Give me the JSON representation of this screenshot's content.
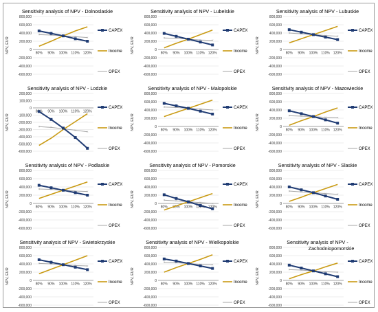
{
  "colors": {
    "capex": "#1f3b73",
    "income": "#c99a12",
    "opex": "#a6a6a6",
    "grid": "#d9d9d9",
    "frame": "#9a9a9a"
  },
  "chart_data": [
    {
      "type": "line",
      "title": "Sensitivity analysis of NPV - Dolnoslaskie",
      "ylabel": "NPV, EUR",
      "categories": [
        "80%",
        "90%",
        "100%",
        "110%",
        "120%"
      ],
      "ylim": [
        -600000,
        800000
      ],
      "yticks": [
        "800,000",
        "600,000",
        "400,000",
        "200,000",
        "0",
        "-200,000",
        "-400,000",
        "-600,000"
      ],
      "grid": true,
      "legend": "right",
      "series": [
        {
          "name": "CAPEX",
          "values": [
            450000,
            390000,
            330000,
            260000,
            200000
          ]
        },
        {
          "name": "Income",
          "values": [
            80000,
            200000,
            330000,
            450000,
            550000
          ]
        },
        {
          "name": "OPEX",
          "values": [
            360000,
            350000,
            330000,
            310000,
            290000
          ]
        }
      ]
    },
    {
      "type": "line",
      "title": "Sensitivity analysis of NPV - Lubelskie",
      "ylabel": "NPV, EUR",
      "categories": [
        "80%",
        "90%",
        "100%",
        "110%",
        "120%"
      ],
      "ylim": [
        -600000,
        800000
      ],
      "yticks": [
        "800,000",
        "600,000",
        "400,000",
        "200,000",
        "0",
        "-200,000",
        "-400,000",
        "-600,000"
      ],
      "grid": true,
      "legend": "right",
      "series": [
        {
          "name": "CAPEX",
          "values": [
            390000,
            320000,
            250000,
            180000,
            110000
          ]
        },
        {
          "name": "Income",
          "values": [
            40000,
            150000,
            250000,
            360000,
            470000
          ]
        },
        {
          "name": "OPEX",
          "values": [
            280000,
            270000,
            250000,
            230000,
            220000
          ]
        }
      ]
    },
    {
      "type": "line",
      "title": "Sensitivity analysis of NPV - Lubuskie",
      "ylabel": "NPV, EUR",
      "categories": [
        "80%",
        "90%",
        "100%",
        "110%",
        "120%"
      ],
      "ylim": [
        -600000,
        800000
      ],
      "yticks": [
        "800,000",
        "600,000",
        "400,000",
        "200,000",
        "0",
        "-200,000",
        "-400,000",
        "-600,000"
      ],
      "grid": true,
      "legend": "right",
      "series": [
        {
          "name": "CAPEX",
          "values": [
            480000,
            420000,
            360000,
            300000,
            240000
          ]
        },
        {
          "name": "Income",
          "values": [
            160000,
            260000,
            360000,
            460000,
            560000
          ]
        },
        {
          "name": "OPEX",
          "values": [
            400000,
            380000,
            360000,
            340000,
            320000
          ]
        }
      ]
    },
    {
      "type": "line",
      "title": "Sensitivity analysis of NPV - Lodzkie",
      "ylabel": "NPV, EUR",
      "categories": [
        "80%",
        "90%",
        "100%",
        "110%",
        "120%"
      ],
      "ylim": [
        -600000,
        200000
      ],
      "yticks": [
        "200,000",
        "100,000",
        "0",
        "-100,000",
        "-200,000",
        "-300,000",
        "-400,000",
        "-500,000",
        "-600,000"
      ],
      "grid": true,
      "legend": "right",
      "series": [
        {
          "name": "CAPEX",
          "values": [
            -50000,
            -160000,
            -280000,
            -410000,
            -560000
          ]
        },
        {
          "name": "Income",
          "values": [
            -520000,
            -420000,
            -300000,
            -190000,
            -80000
          ]
        },
        {
          "name": "OPEX",
          "values": [
            -260000,
            -270000,
            -290000,
            -310000,
            -330000
          ]
        }
      ]
    },
    {
      "type": "line",
      "title": "Sensitivity analysis of NPV - Malopolskie",
      "ylabel": "NPV, EUR",
      "categories": [
        "80%",
        "90%",
        "100%",
        "110%",
        "120%"
      ],
      "ylim": [
        -600000,
        800000
      ],
      "yticks": [
        "800,000",
        "600,000",
        "400,000",
        "200,000",
        "0",
        "-200,000",
        "-400,000",
        "-600,000"
      ],
      "grid": true,
      "legend": "right",
      "series": [
        {
          "name": "CAPEX",
          "values": [
            560000,
            500000,
            440000,
            370000,
            300000
          ]
        },
        {
          "name": "Income",
          "values": [
            240000,
            340000,
            440000,
            540000,
            640000
          ]
        },
        {
          "name": "OPEX",
          "values": [
            470000,
            460000,
            440000,
            420000,
            400000
          ]
        }
      ]
    },
    {
      "type": "line",
      "title": "Sensitivity analysis of NPV - Mazowieckie",
      "ylabel": "NPV, EUR",
      "categories": [
        "80%",
        "90%",
        "100%",
        "110%",
        "120%"
      ],
      "ylim": [
        -600000,
        800000
      ],
      "yticks": [
        "800,000",
        "600,000",
        "400,000",
        "200,000",
        "0",
        "-200,000",
        "-400,000",
        "-600,000"
      ],
      "grid": true,
      "legend": "right",
      "series": [
        {
          "name": "CAPEX",
          "values": [
            380000,
            310000,
            240000,
            160000,
            80000
          ]
        },
        {
          "name": "Income",
          "values": [
            30000,
            140000,
            240000,
            350000,
            450000
          ]
        },
        {
          "name": "OPEX",
          "values": [
            260000,
            250000,
            240000,
            220000,
            210000
          ]
        }
      ]
    },
    {
      "type": "line",
      "title": "Sensitivity analysis of NPV - Podlaskie",
      "ylabel": "NPV, EUR",
      "categories": [
        "80%",
        "90%",
        "100%",
        "110%",
        "120%"
      ],
      "ylim": [
        -600000,
        800000
      ],
      "yticks": [
        "800,000",
        "600,000",
        "400,000",
        "200,000",
        "0",
        "-200,000",
        "-400,000",
        "-600,000"
      ],
      "grid": true,
      "legend": "right",
      "series": [
        {
          "name": "CAPEX",
          "values": [
            440000,
            380000,
            320000,
            260000,
            200000
          ]
        },
        {
          "name": "Income",
          "values": [
            120000,
            220000,
            320000,
            420000,
            520000
          ]
        },
        {
          "name": "OPEX",
          "values": [
            350000,
            340000,
            320000,
            300000,
            290000
          ]
        }
      ]
    },
    {
      "type": "line",
      "title": "Sensitivity analysis of NPV - Pomorskie",
      "ylabel": "NPV, EUR",
      "categories": [
        "80%",
        "90%",
        "100%",
        "110%",
        "120%"
      ],
      "ylim": [
        -600000,
        800000
      ],
      "yticks": [
        "800,000",
        "600,000",
        "400,000",
        "200,000",
        "0",
        "-200,000",
        "-400,000",
        "-600,000"
      ],
      "grid": true,
      "legend": "right",
      "series": [
        {
          "name": "CAPEX",
          "values": [
            210000,
            120000,
            40000,
            -50000,
            -130000
          ]
        },
        {
          "name": "Income",
          "values": [
            -160000,
            -60000,
            40000,
            140000,
            240000
          ]
        },
        {
          "name": "OPEX",
          "values": [
            80000,
            60000,
            40000,
            20000,
            0
          ]
        }
      ]
    },
    {
      "type": "line",
      "title": "Sensitivity analysis of NPV - Slaskie",
      "ylabel": "NPV, EUR",
      "categories": [
        "80%",
        "90%",
        "100%",
        "110%",
        "120%"
      ],
      "ylim": [
        -600000,
        800000
      ],
      "yticks": [
        "800,000",
        "600,000",
        "400,000",
        "200,000",
        "0",
        "-200,000",
        "-400,000",
        "-600,000"
      ],
      "grid": true,
      "legend": "right",
      "series": [
        {
          "name": "CAPEX",
          "values": [
            400000,
            330000,
            260000,
            180000,
            100000
          ]
        },
        {
          "name": "Income",
          "values": [
            50000,
            150000,
            260000,
            360000,
            460000
          ]
        },
        {
          "name": "OPEX",
          "values": [
            300000,
            280000,
            260000,
            240000,
            220000
          ]
        }
      ]
    },
    {
      "type": "line",
      "title": "Sensitivity analysis of NPV - Swietokrzyskie",
      "ylabel": "NPV, EUR",
      "categories": [
        "80%",
        "90%",
        "100%",
        "110%",
        "120%"
      ],
      "ylim": [
        -600000,
        800000
      ],
      "yticks": [
        "800,000",
        "600,000",
        "400,000",
        "200,000",
        "0",
        "-200,000",
        "-400,000",
        "-600,000"
      ],
      "grid": true,
      "legend": "right",
      "series": [
        {
          "name": "CAPEX",
          "values": [
            500000,
            440000,
            380000,
            320000,
            260000
          ]
        },
        {
          "name": "Income",
          "values": [
            160000,
            270000,
            380000,
            490000,
            600000
          ]
        },
        {
          "name": "OPEX",
          "values": [
            410000,
            400000,
            380000,
            360000,
            350000
          ]
        }
      ]
    },
    {
      "type": "line",
      "title": "Sensitivity analysis of NPV - Wielkopolskie",
      "ylabel": "NPV, EUR",
      "categories": [
        "80%",
        "90%",
        "100%",
        "110%",
        "120%"
      ],
      "ylim": [
        -600000,
        800000
      ],
      "yticks": [
        "800,000",
        "600,000",
        "400,000",
        "200,000",
        "0",
        "-200,000",
        "-400,000",
        "-600,000"
      ],
      "grid": true,
      "legend": "right",
      "series": [
        {
          "name": "CAPEX",
          "values": [
            520000,
            470000,
            410000,
            350000,
            290000
          ]
        },
        {
          "name": "Income",
          "values": [
            200000,
            310000,
            410000,
            510000,
            620000
          ]
        },
        {
          "name": "OPEX",
          "values": [
            440000,
            430000,
            410000,
            390000,
            380000
          ]
        }
      ]
    },
    {
      "type": "line",
      "title": "Sensitivity analysis of NPV - Zachodniopomorskie",
      "ylabel": "NPV, EUR",
      "categories": [
        "80%",
        "90%",
        "100%",
        "110%",
        "120%"
      ],
      "ylim": [
        -600000,
        800000
      ],
      "yticks": [
        "800,000",
        "600,000",
        "400,000",
        "200,000",
        "0",
        "-200,000",
        "-400,000",
        "-600,000"
      ],
      "grid": true,
      "legend": "right",
      "series": [
        {
          "name": "CAPEX",
          "values": [
            370000,
            300000,
            230000,
            160000,
            90000
          ]
        },
        {
          "name": "Income",
          "values": [
            40000,
            140000,
            230000,
            330000,
            420000
          ]
        },
        {
          "name": "OPEX",
          "values": [
            260000,
            250000,
            230000,
            210000,
            200000
          ]
        }
      ]
    }
  ]
}
